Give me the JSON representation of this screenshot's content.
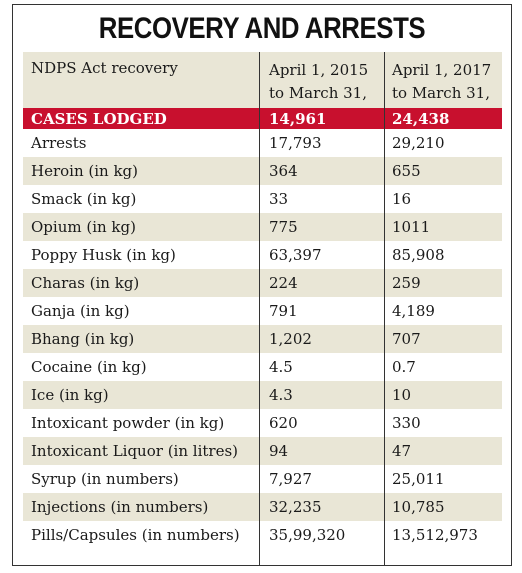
{
  "title": "RECOVERY AND ARRESTS",
  "columns": [
    "NDPS Act recovery",
    "April 1, 2015 to March 31, 2017",
    "April 1, 2017 to March 31, 2019"
  ],
  "highlight_color": "#c8102e",
  "shade_color": "#e9e6d6",
  "rows": [
    {
      "label": "CASES LODGED",
      "a": "14,961",
      "b": "24,438"
    },
    {
      "label": "Arrests",
      "a": "17,793",
      "b": "29,210"
    },
    {
      "label": "Heroin (in kg)",
      "a": "364",
      "b": "655"
    },
    {
      "label": "Smack (in kg)",
      "a": "33",
      "b": "16"
    },
    {
      "label": "Opium (in kg)",
      "a": "775",
      "b": "1011"
    },
    {
      "label": "Poppy Husk (in kg)",
      "a": "63,397",
      "b": "85,908"
    },
    {
      "label": "Charas (in kg)",
      "a": "224",
      "b": "259"
    },
    {
      "label": "Ganja (in kg)",
      "a": "791",
      "b": "4,189"
    },
    {
      "label": "Bhang (in kg)",
      "a": "1,202",
      "b": "707"
    },
    {
      "label": "Cocaine (in kg)",
      "a": "4.5",
      "b": "0.7"
    },
    {
      "label": "Ice (in kg)",
      "a": "4.3",
      "b": "10"
    },
    {
      "label": "Intoxicant powder (in kg)",
      "a": "620",
      "b": "330"
    },
    {
      "label": "Intoxicant Liquor (in litres)",
      "a": "94",
      "b": "47"
    },
    {
      "label": "Syrup (in numbers)",
      "a": "7,927",
      "b": "25,011"
    },
    {
      "label": "Injections (in numbers)",
      "a": "32,235",
      "b": "10,785"
    },
    {
      "label": "Pills/Capsules (in numbers)",
      "a": "35,99,320",
      "b": "13,512,973"
    }
  ]
}
